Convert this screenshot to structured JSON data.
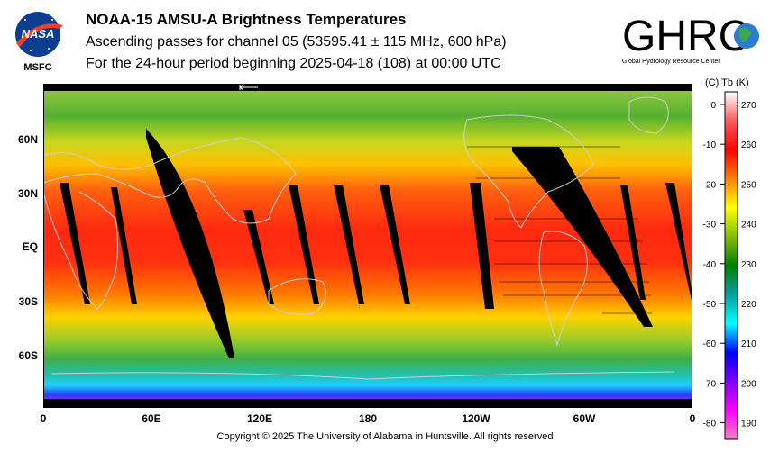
{
  "header": {
    "title": "NOAA-15 AMSU-A Brightness Temperatures",
    "subtitle1": "Ascending passes for channel 05 (53595.41 ± 115 MHz, 600 hPa)",
    "subtitle2": "For the 24-hour period beginning 2025-04-18 (108) at 00:00 UTC"
  },
  "logos": {
    "nasa_text": "NASA",
    "msfc": "MSFC",
    "ghrc_text": "GHRC",
    "ghrc_sub": "Global Hydrology Resource Center"
  },
  "map": {
    "lat_labels": [
      "60N",
      "30N",
      "EQ",
      "30S",
      "60S"
    ],
    "lon_labels": [
      "0",
      "60E",
      "120E",
      "180",
      "120W",
      "60W",
      "0"
    ]
  },
  "colorbar": {
    "header": "(C)  Tb  (K)",
    "celsius_ticks": [
      "0",
      "-10",
      "-20",
      "-30",
      "-40",
      "-50",
      "-60",
      "-70",
      "-80"
    ],
    "kelvin_ticks": [
      "270",
      "260",
      "250",
      "240",
      "230",
      "220",
      "210",
      "200",
      "190"
    ],
    "colors": [
      "#ffffff",
      "#ff5a5a",
      "#ff0000",
      "#ff8000",
      "#ffff00",
      "#80c000",
      "#008000",
      "#00a0a0",
      "#00ffff",
      "#0000ff",
      "#8000ff",
      "#ff00ff",
      "#ff80c0"
    ]
  },
  "footer": {
    "copyright": "Copyright © 2025 The University of Alabama in Huntsville.  All rights reserved"
  }
}
